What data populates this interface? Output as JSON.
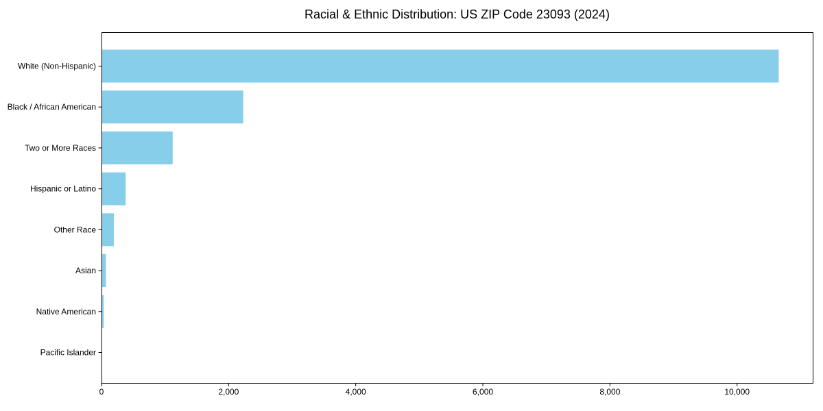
{
  "title": "Racial & Ethnic Distribution: US ZIP Code 23093 (2024)",
  "colors": {
    "bar": "#87CEEB",
    "axis": "#000000",
    "text": "#000000",
    "background": "#FFFFFF"
  },
  "chart_data": {
    "type": "bar",
    "orientation": "horizontal",
    "title": "Racial & Ethnic Distribution: US ZIP Code 23093 (2024)",
    "categories": [
      "White (Non-Hispanic)",
      "Black / African American",
      "Two or More Races",
      "Hispanic or Latino",
      "Other Race",
      "Asian",
      "Native American",
      "Pacific Islander"
    ],
    "values": [
      10655,
      2230,
      1120,
      380,
      195,
      70,
      35,
      0
    ],
    "xlabel": "",
    "ylabel": "",
    "xlim": [
      0,
      11190
    ],
    "x_ticks": [
      0,
      2000,
      4000,
      6000,
      8000,
      10000
    ],
    "x_tick_labels": [
      "0",
      "2,000",
      "4,000",
      "6,000",
      "8,000",
      "10,000"
    ],
    "bar_color": "#87CEEB",
    "grid": false,
    "legend": "none"
  }
}
